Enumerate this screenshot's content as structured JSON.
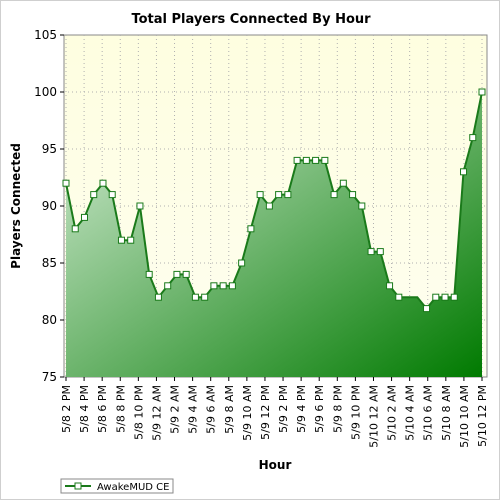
{
  "chart_data": {
    "type": "area",
    "title": "Total Players Connected By Hour",
    "xlabel": "Hour",
    "ylabel": "Players Connected",
    "ylim": [
      75,
      105
    ],
    "yticks": [
      75,
      80,
      85,
      90,
      95,
      100,
      105
    ],
    "grid": true,
    "legend_position": "bottom-left",
    "x_tick_labels": [
      "5/8 2 PM",
      "5/8 4 PM",
      "5/8 6 PM",
      "5/8 8 PM",
      "5/8 10 PM",
      "5/9 12 AM",
      "5/9 2 AM",
      "5/9 4 AM",
      "5/9 6 AM",
      "5/9 8 AM",
      "5/9 10 AM",
      "5/9 12 PM",
      "5/9 2 PM",
      "5/9 4 PM",
      "5/9 6 PM",
      "5/9 8 PM",
      "5/9 10 PM",
      "5/10 12 AM",
      "5/10 2 AM",
      "5/10 4 AM",
      "5/10 6 AM",
      "5/10 8 AM",
      "5/10 10 AM",
      "5/10 12 PM"
    ],
    "series": [
      {
        "name": "AwakeMUD CE",
        "values": [
          92,
          88,
          89,
          91,
          92,
          91,
          87,
          87,
          90,
          84,
          82,
          83,
          84,
          84,
          82,
          82,
          83,
          83,
          83,
          85,
          88,
          91,
          90,
          91,
          91,
          94,
          94,
          94,
          94,
          91,
          92,
          91,
          90,
          86,
          86,
          83,
          82,
          82,
          82,
          81,
          82,
          82,
          82,
          93,
          96,
          100
        ],
        "markers": [
          true,
          true,
          true,
          true,
          true,
          true,
          true,
          true,
          true,
          true,
          true,
          true,
          true,
          true,
          true,
          true,
          true,
          true,
          true,
          true,
          true,
          true,
          true,
          true,
          true,
          true,
          true,
          true,
          true,
          true,
          true,
          true,
          true,
          true,
          true,
          true,
          true,
          false,
          false,
          true,
          true,
          true,
          true,
          true,
          true,
          true
        ]
      }
    ],
    "colors": {
      "line": "#1a7a1a",
      "area_light": "#d8eed8",
      "area_dark": "#007a00",
      "plot_bg_top": "#fefee0",
      "plot_bg_bottom": "#fefef0",
      "grid": "#b0b0b0"
    }
  }
}
